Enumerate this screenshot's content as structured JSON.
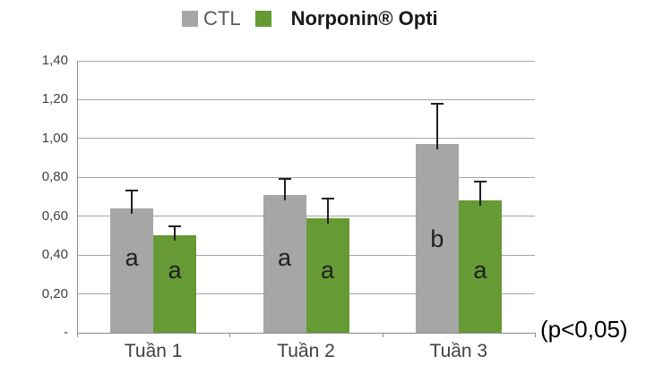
{
  "annotation_note": "(p<0,05)",
  "chart_data": {
    "type": "bar",
    "title": "",
    "xlabel": "",
    "ylabel": "",
    "categories": [
      "Tuần 1",
      "Tuần 2",
      "Tuần 3"
    ],
    "series": [
      {
        "name": "CTL",
        "color": "#a6a6a6",
        "values": [
          0.64,
          0.71,
          0.97
        ],
        "errors_plus": [
          0.09,
          0.08,
          0.21
        ],
        "sig_letters": [
          "a",
          "a",
          "b"
        ]
      },
      {
        "name": "Norponin® Opti",
        "color": "#669a35",
        "values": [
          0.5,
          0.59,
          0.68
        ],
        "errors_plus": [
          0.05,
          0.1,
          0.1
        ],
        "sig_letters": [
          "a",
          "a",
          "a"
        ]
      }
    ],
    "ylim": [
      0,
      1.4
    ],
    "y_ticks": [
      {
        "label": "1,40",
        "value": 1.4
      },
      {
        "label": "1,20",
        "value": 1.2
      },
      {
        "label": "1,00",
        "value": 1.0
      },
      {
        "label": "0,80",
        "value": 0.8
      },
      {
        "label": "0,60",
        "value": 0.6
      },
      {
        "label": "0,40",
        "value": 0.4
      },
      {
        "label": "0,20",
        "value": 0.2
      },
      {
        "label": "-",
        "value": 0
      }
    ],
    "grid": true,
    "error_bars": true,
    "legend_position": "top",
    "annotation": "(p<0,05)"
  }
}
